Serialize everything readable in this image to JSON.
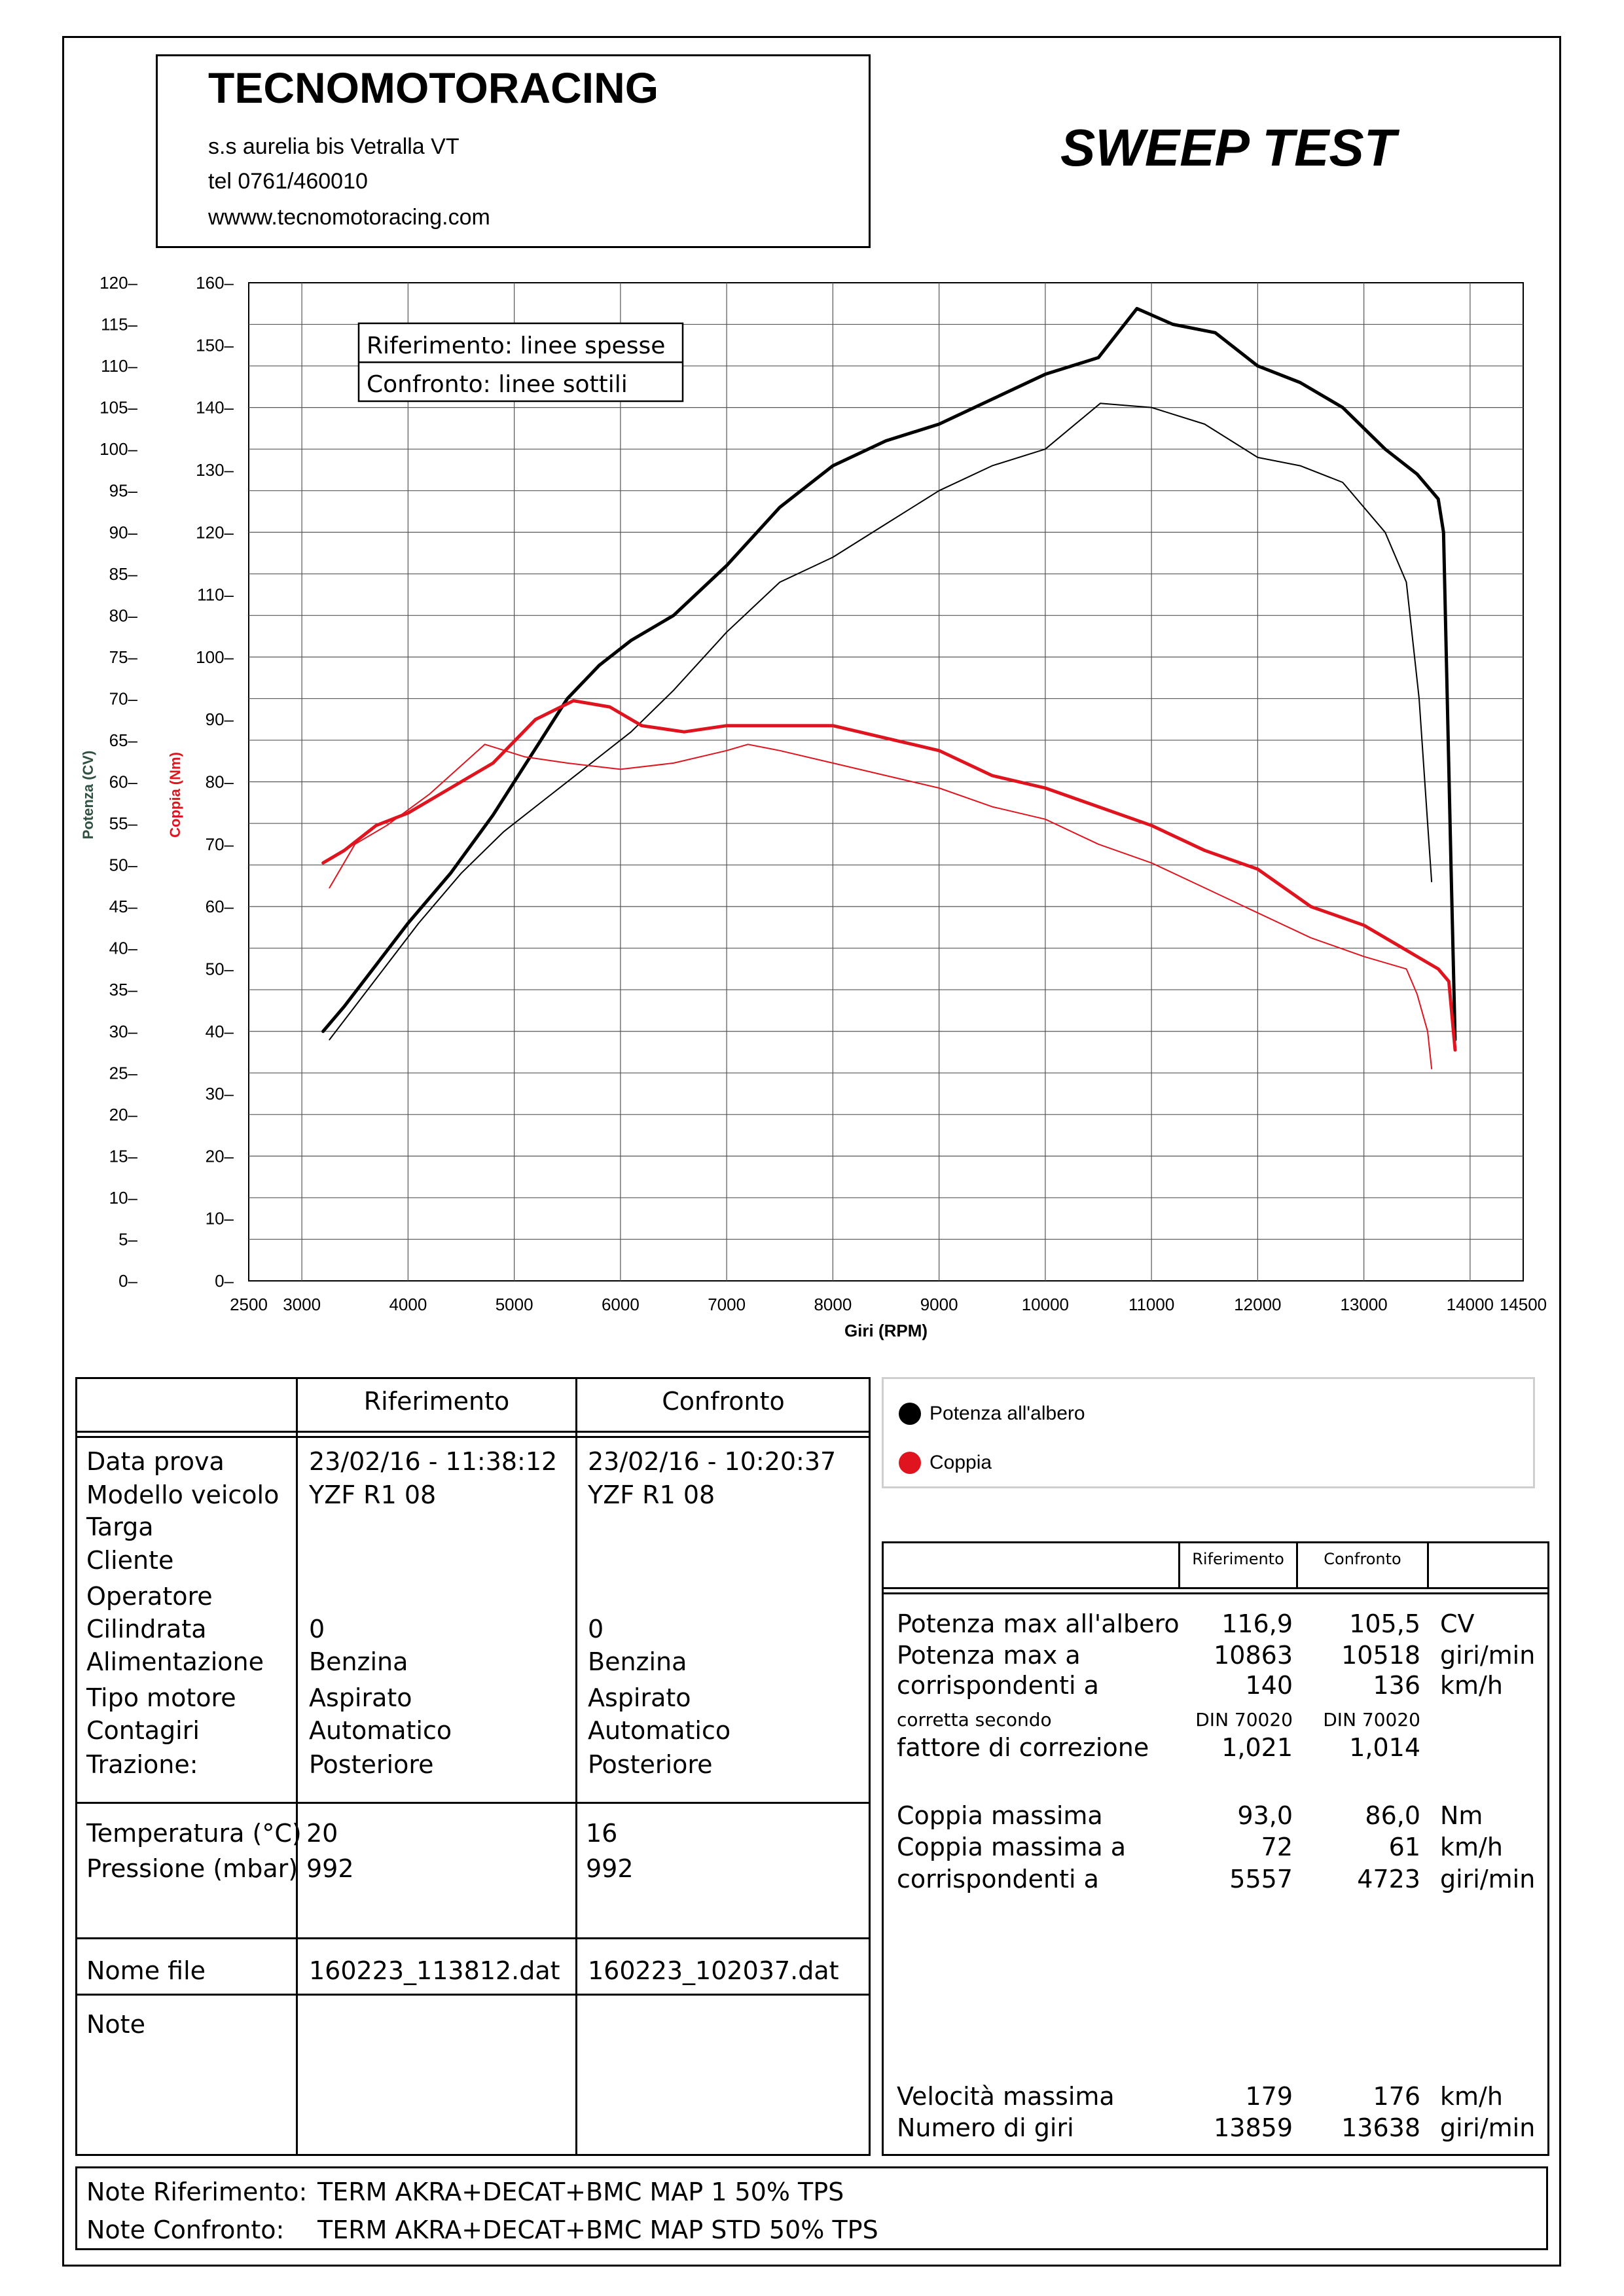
{
  "header": {
    "company": "TECNOMOTORACING",
    "address": "s.s aurelia bis  Vetralla  VT",
    "phone": "tel 0761/460010",
    "web": "wwww.tecnomotoracing.com",
    "title": "SWEEP TEST"
  },
  "chart_data": {
    "type": "line",
    "xlabel": "Giri (RPM)",
    "ylabel_left": "Potenza (CV)",
    "ylabel_right": "Coppia (Nm)",
    "xlim": [
      2500,
      14500
    ],
    "ylim_power": [
      0,
      120
    ],
    "ylim_torque": [
      0,
      160
    ],
    "x_ticks": [
      "2500",
      "3000",
      "4000",
      "5000",
      "6000",
      "7000",
      "8000",
      "9000",
      "10000",
      "11000",
      "12000",
      "13000",
      "14000",
      "14500"
    ],
    "y_ticks_power": [
      "120",
      "115",
      "110",
      "105",
      "100",
      "95",
      "90",
      "85",
      "80",
      "75",
      "70",
      "65",
      "60",
      "55",
      "50",
      "45",
      "40",
      "35",
      "30",
      "25",
      "20",
      "15",
      "10",
      "5",
      "0"
    ],
    "y_ticks_torque": [
      "160",
      "150",
      "140",
      "130",
      "120",
      "110",
      "100",
      "90",
      "80",
      "70",
      "60",
      "50",
      "40",
      "30",
      "20",
      "10",
      "0"
    ],
    "grid": true,
    "colors": {
      "power": "#000000",
      "torque": "#e0141e"
    },
    "series": [
      {
        "name": "Potenza",
        "role": "Riferimento",
        "axis": "power",
        "x": [
          3200,
          3400,
          3700,
          4000,
          4400,
          4800,
          5200,
          5500,
          5800,
          6100,
          6500,
          7000,
          7500,
          8000,
          8500,
          9000,
          9500,
          10000,
          10500,
          10863,
          11200,
          11600,
          12000,
          12400,
          12800,
          13200,
          13500,
          13700,
          13750,
          13820,
          13859
        ],
        "y": [
          30,
          33,
          38,
          43,
          49,
          56,
          64,
          70,
          74,
          77,
          80,
          86,
          93,
          98,
          101,
          103,
          106,
          109,
          111,
          116.9,
          115,
          114,
          110,
          108,
          105,
          100,
          97,
          94,
          90,
          50,
          29
        ]
      },
      {
        "name": "Potenza",
        "role": "Confronto",
        "axis": "power",
        "x": [
          3260,
          3500,
          3800,
          4100,
          4500,
          4900,
          5300,
          5700,
          6100,
          6500,
          7000,
          7500,
          8000,
          8500,
          9000,
          9500,
          10000,
          10518,
          11000,
          11500,
          12000,
          12400,
          12800,
          13200,
          13400,
          13520,
          13600,
          13638
        ],
        "y": [
          29,
          33,
          38,
          43,
          49,
          54,
          58,
          62,
          66,
          71,
          78,
          84,
          87,
          91,
          95,
          98,
          100,
          105.5,
          105,
          103,
          99,
          98,
          96,
          90,
          84,
          70,
          55,
          48
        ]
      },
      {
        "name": "Coppia",
        "role": "Riferimento",
        "axis": "torque",
        "x": [
          3200,
          3400,
          3700,
          4000,
          4400,
          4800,
          5200,
          5557,
          5900,
          6200,
          6600,
          7000,
          7500,
          8000,
          8500,
          9000,
          9500,
          10000,
          10500,
          11000,
          11500,
          12000,
          12500,
          13000,
          13400,
          13700,
          13800,
          13859
        ],
        "y": [
          67,
          69,
          73,
          75,
          79,
          83,
          90,
          93.0,
          92,
          89,
          88,
          89,
          89,
          89,
          87,
          85,
          81,
          79,
          76,
          73,
          69,
          66,
          60,
          57,
          53,
          50,
          48,
          37
        ]
      },
      {
        "name": "Coppia",
        "role": "Confronto",
        "axis": "torque",
        "x": [
          3260,
          3500,
          3800,
          4200,
          4723,
          5100,
          5500,
          6000,
          6500,
          7000,
          7200,
          7500,
          8000,
          8500,
          9000,
          9500,
          10000,
          10500,
          11000,
          11500,
          12000,
          12500,
          13000,
          13400,
          13500,
          13600,
          13638
        ],
        "y": [
          63,
          70,
          73,
          78,
          86.0,
          84,
          83,
          82,
          83,
          85,
          86,
          85,
          83,
          81,
          79,
          76,
          74,
          70,
          67,
          63,
          59,
          55,
          52,
          50,
          46,
          40,
          34
        ]
      }
    ],
    "annotations": [
      "Riferimento: linee spesse",
      "Confronto: linee sottili"
    ]
  },
  "legend": {
    "power_label": "Potenza all'albero",
    "torque_label": "Coppia"
  },
  "info_table": {
    "col_ref": "Riferimento",
    "col_conf": "Confronto",
    "labels": [
      "Data prova",
      "Modello veicolo",
      "Targa",
      "Cliente",
      "Operatore",
      "Cilindrata",
      "Alimentazione",
      "Tipo motore",
      "Contagiri",
      "Trazione:"
    ],
    "ref_values": [
      "23/02/16 - 11:38:12",
      "YZF R1 08",
      "",
      "",
      "",
      "0",
      "Benzina",
      "Aspirato",
      "Automatico",
      "Posteriore"
    ],
    "conf_values": [
      "23/02/16 - 10:20:37",
      "YZF R1 08",
      "",
      "",
      "",
      "0",
      "Benzina",
      "Aspirato",
      "Automatico",
      "Posteriore"
    ],
    "temp_label": "Temperatura (°C)",
    "temp_ref": "20",
    "temp_conf": "16",
    "press_label": "Pressione (mbar)",
    "press_ref": "992",
    "press_conf": "992",
    "file_label": "Nome file",
    "file_ref": "160223_113812.dat",
    "file_conf": "160223_102037.dat",
    "note_label": "Note"
  },
  "results_table": {
    "col_ref": "Riferimento",
    "col_conf": "Confronto",
    "rows": [
      {
        "label": "Potenza max all'albero",
        "ref": "116,9",
        "conf": "105,5",
        "unit": "CV"
      },
      {
        "label": "Potenza max a",
        "ref": "10863",
        "conf": "10518",
        "unit": "giri/min"
      },
      {
        "label": "corrispondenti a",
        "ref": "140",
        "conf": "136",
        "unit": "km/h"
      },
      {
        "label": "corretta secondo",
        "ref": "DIN 70020",
        "conf": "DIN 70020",
        "unit": ""
      },
      {
        "label": "fattore di correzione",
        "ref": "1,021",
        "conf": "1,014",
        "unit": ""
      },
      {
        "label": "Coppia massima",
        "ref": "93,0",
        "conf": "86,0",
        "unit": "Nm"
      },
      {
        "label": "Coppia massima a",
        "ref": "72",
        "conf": "61",
        "unit": "km/h"
      },
      {
        "label": "corrispondenti a",
        "ref": "5557",
        "conf": "4723",
        "unit": "giri/min"
      },
      {
        "label": "Velocità massima",
        "ref": "179",
        "conf": "176",
        "unit": "km/h"
      },
      {
        "label": "Numero di giri",
        "ref": "13859",
        "conf": "13638",
        "unit": "giri/min"
      }
    ]
  },
  "notes": {
    "ref_label": "Note Riferimento:",
    "ref_text": "TERM AKRA+DECAT+BMC MAP 1 50% TPS",
    "conf_label": "Note Confronto:",
    "conf_text": "TERM AKRA+DECAT+BMC MAP STD 50% TPS"
  }
}
